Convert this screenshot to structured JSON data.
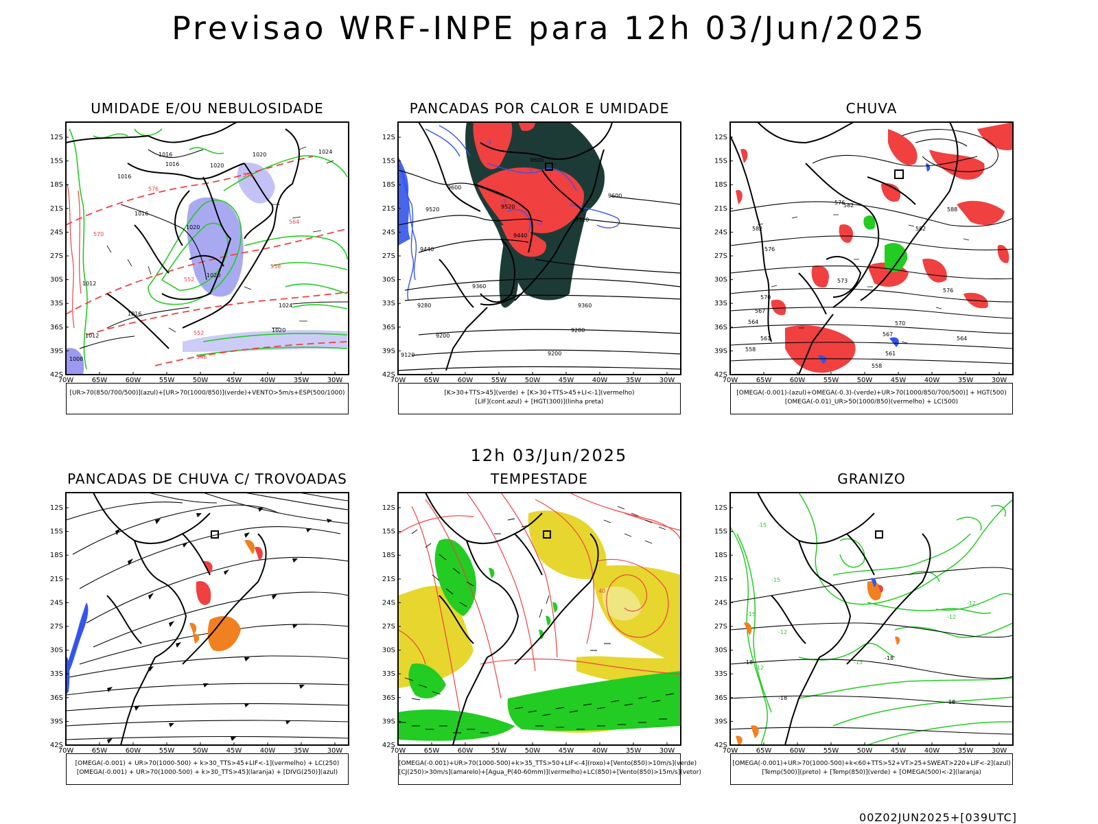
{
  "title": "Previsao WRF-INPE  para 12h 03/Jun/2025",
  "mid_label": "12h 03/Jun/2025",
  "footer": "00Z02JUN2025+[039UTC]",
  "axes": {
    "lat": [
      "12S",
      "15S",
      "18S",
      "21S",
      "24S",
      "27S",
      "30S",
      "33S",
      "36S",
      "39S",
      "42S"
    ],
    "lon": [
      "70W",
      "65W",
      "60W",
      "55W",
      "50W",
      "45W",
      "40W",
      "35W",
      "30W"
    ]
  },
  "panels": [
    {
      "id": "p1",
      "title": "UMIDADE E/OU NEBULOSIDADE",
      "legend": [
        "[UR>70(850/700/500)](azul)+[UR>70(1000/850)](verde)+VENTO>5m/s+ESP(500/1000)"
      ],
      "labels": [
        "1016",
        "1016",
        "1016",
        "1020",
        "1020",
        "1020",
        "1016",
        "1020",
        "1024",
        "1024",
        "1020",
        "1016",
        "1012",
        "1012",
        "1008",
        "570",
        "576",
        "576",
        "564",
        "558",
        "552",
        "552",
        "546"
      ]
    },
    {
      "id": "p2",
      "title": "PANCADAS POR CALOR E UMIDADE",
      "legend": [
        "[K>30+TTS>45](verde) + [K>30+TTS>45+LI<-1](vermelho)",
        "[LIF](cont.azul) + [HGT(300)](linha preta)"
      ],
      "labels": [
        "9600",
        "9600",
        "9600",
        "9520",
        "9520",
        "9520",
        "9440",
        "9440",
        "9360",
        "9360",
        "9280",
        "9280",
        "9200",
        "9200",
        "9120",
        "-3",
        "-3",
        "-3",
        "-3"
      ]
    },
    {
      "id": "p3",
      "title": "CHUVA",
      "legend": [
        "[OMEGA(-0.001)-(azul)+OMEGA(-0.3)-(verde)+UR>70(1000/850/700/500)] + HGT(500)",
        "[OMEGA(-0.01)_UR>50(1000/850)(vermelho) + LC(500)"
      ],
      "labels": [
        "582",
        "582",
        "582",
        "576",
        "576",
        "576",
        "573",
        "570",
        "570",
        "567",
        "567",
        "564",
        "564",
        "561",
        "561",
        "558",
        "558",
        "588"
      ]
    },
    {
      "id": "p4",
      "title": "PANCADAS DE CHUVA C/ TROVOADAS",
      "legend": [
        "[OMEGA(-0.001) + UR>70(1000-500) + k>30_TTS>45+LIF<-1](vermelho) + LC(250)",
        "[OMEGA(-0.001) + UR>70(1000-500) + k>30_TTS>45](laranja) + [DIVG(250)](azul)"
      ],
      "labels": []
    },
    {
      "id": "p5",
      "title": "TEMPESTADE",
      "legend": [
        "[OMEGA(-0.001)+UR>70(1000-500)+k>35_TTS>50+LIF<-4](roxo)+[Vento(850)>10m/s](verde)",
        "[CJ(250)>30m/s](amarelo)+[Agua_P(40-60mm)](vermelho)+LC(850)+[Vento(850)>15m/s](vetor)"
      ],
      "labels": [
        "40"
      ]
    },
    {
      "id": "p6",
      "title": "GRANIZO",
      "legend": [
        "[OMEGA(-0.001)+UR>70(1000-500)+k<60+TTS>52+VT>25+SWEAT>220+LIF<-2](azul)",
        "[Temp(500)](preto) + [Temp(850)](verde) + [OMEGA(500)<-2](laranja)"
      ],
      "labels": [
        "-12",
        "-12",
        "-12",
        "-12",
        "-15",
        "-15",
        "-15",
        "-15",
        "-18",
        "-18",
        "-18",
        "-18"
      ]
    }
  ],
  "colors": {
    "blue": "#3355ee",
    "lavender": "#9a9af0",
    "green": "#22cc22",
    "red": "#f04040",
    "darkgreen": "#1d3b36",
    "yellow": "#e6d62e",
    "orange": "#f08020",
    "black": "#000000"
  }
}
